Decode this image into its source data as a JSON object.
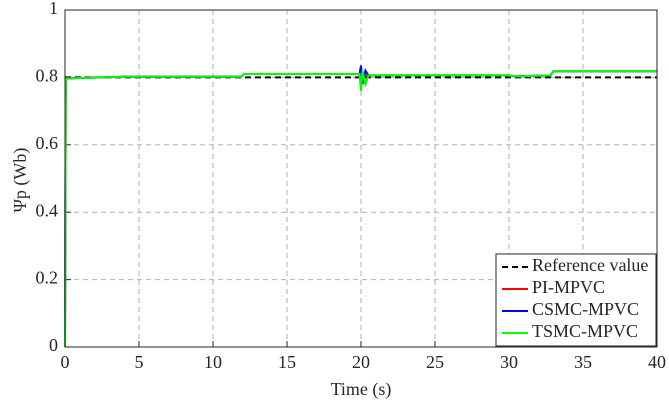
{
  "chart_data": {
    "type": "line",
    "xlabel": "Time (s)",
    "ylabel": "Ψp (Wb)",
    "x": [
      0,
      0.05,
      4,
      11.9,
      12.1,
      19.9,
      20,
      20.1,
      20.3,
      20.5,
      29.9,
      30.5,
      32.8,
      33,
      40
    ],
    "series": [
      {
        "name": "Reference value",
        "color": "#000000",
        "linestyle": "dashed",
        "values": [
          0.8,
          0.8,
          0.8,
          0.8,
          0.8,
          0.8,
          0.8,
          0.8,
          0.8,
          0.8,
          0.8,
          0.8,
          0.8,
          0.8,
          0.8
        ]
      },
      {
        "name": "PI-MPVC",
        "color": "#ff0000",
        "linestyle": "solid",
        "values": [
          0,
          0.797,
          0.802,
          0.802,
          0.81,
          0.81,
          0.79,
          0.815,
          0.805,
          0.806,
          0.806,
          0.803,
          0.806,
          0.818,
          0.818
        ]
      },
      {
        "name": "CSMC-MPVC",
        "color": "#0000ff",
        "linestyle": "solid",
        "values": [
          0,
          0.797,
          0.802,
          0.802,
          0.81,
          0.81,
          0.835,
          0.78,
          0.82,
          0.806,
          0.806,
          0.803,
          0.806,
          0.818,
          0.818
        ]
      },
      {
        "name": "TSMC-MPVC",
        "color": "#00ff00",
        "linestyle": "solid",
        "values": [
          0,
          0.797,
          0.802,
          0.802,
          0.81,
          0.81,
          0.76,
          0.82,
          0.78,
          0.806,
          0.806,
          0.803,
          0.806,
          0.818,
          0.818
        ]
      }
    ],
    "xlim": [
      0,
      40
    ],
    "xticks": [
      0,
      5,
      10,
      15,
      20,
      25,
      30,
      35,
      40
    ],
    "ylim": [
      0,
      1
    ],
    "yticks": [
      0,
      0.2,
      0.4,
      0.6,
      0.8,
      1
    ],
    "grid": true,
    "legend": "lower right"
  }
}
